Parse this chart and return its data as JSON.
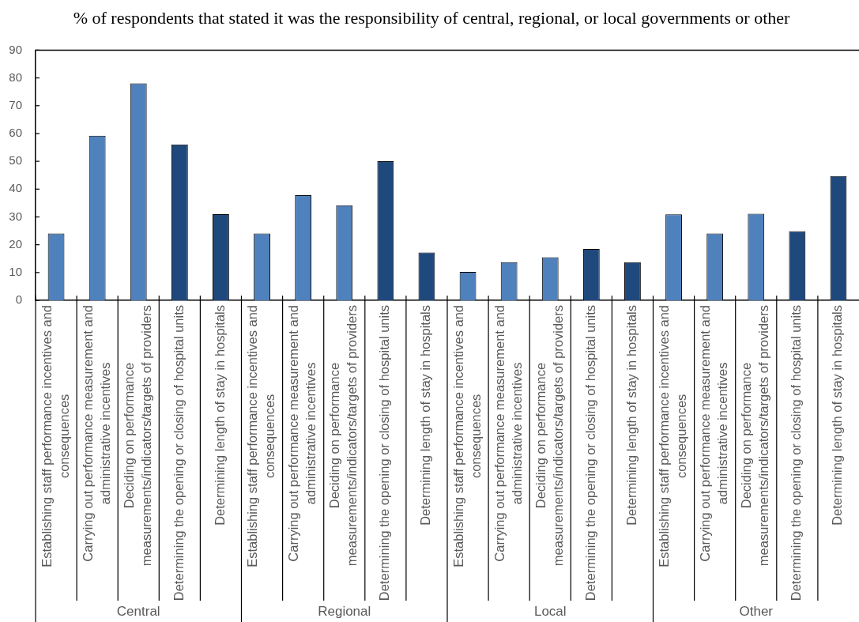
{
  "chart_data": {
    "type": "bar",
    "title": "% of respondents that stated it was the responsibility of central, regional, or local governments or other",
    "categories": [
      "Establishing staff performance incentives and consequences",
      "Carrying out performance measurement and administrative incentives",
      "Deciding on performance measurements/indicators/targets of providers",
      "Determining the opening or closing of hospital units",
      "Determining length of stay in hospitals",
      "Establishing staff performance incentives and consequences",
      "Carrying out performance measurement and administrative incentives",
      "Deciding on performance measurements/indicators/targets of providers",
      "Determining the opening or closing of hospital units",
      "Determining length of stay in hospitals",
      "Establishing staff performance incentives and consequences",
      "Carrying out performance measurement and administrative incentives",
      "Deciding on performance measurements/indicators/targets of providers",
      "Determining the opening or closing of hospital units",
      "Determining length of stay in hospitals",
      "Establishing staff performance incentives and consequences",
      "Carrying out performance measurement and administrative incentives",
      "Deciding on performance measurements/indicators/targets of providers",
      "Determining the opening or closing of hospital units",
      "Determining length of stay in hospitals"
    ],
    "values": [
      24,
      59.2,
      78,
      56.1,
      31,
      24,
      37.8,
      34.2,
      50,
      17.2,
      10.2,
      13.7,
      15.5,
      18.5,
      13.7,
      30.9,
      24,
      31.1,
      24.9,
      44.7
    ],
    "colors": [
      "#4f81bd",
      "#4f81bd",
      "#4f81bd",
      "#1f497d",
      "#1f497d",
      "#4f81bd",
      "#4f81bd",
      "#4f81bd",
      "#1f497d",
      "#1f497d",
      "#4f81bd",
      "#4f81bd",
      "#4f81bd",
      "#1f497d",
      "#1f497d",
      "#4f81bd",
      "#4f81bd",
      "#4f81bd",
      "#1f497d",
      "#1f497d"
    ],
    "ylim": [
      0,
      90
    ],
    "yticks": [
      0,
      10,
      20,
      30,
      40,
      50,
      60,
      70,
      80,
      90
    ],
    "annotations": [
      "Central",
      "Regional",
      "Local",
      "Other"
    ]
  }
}
